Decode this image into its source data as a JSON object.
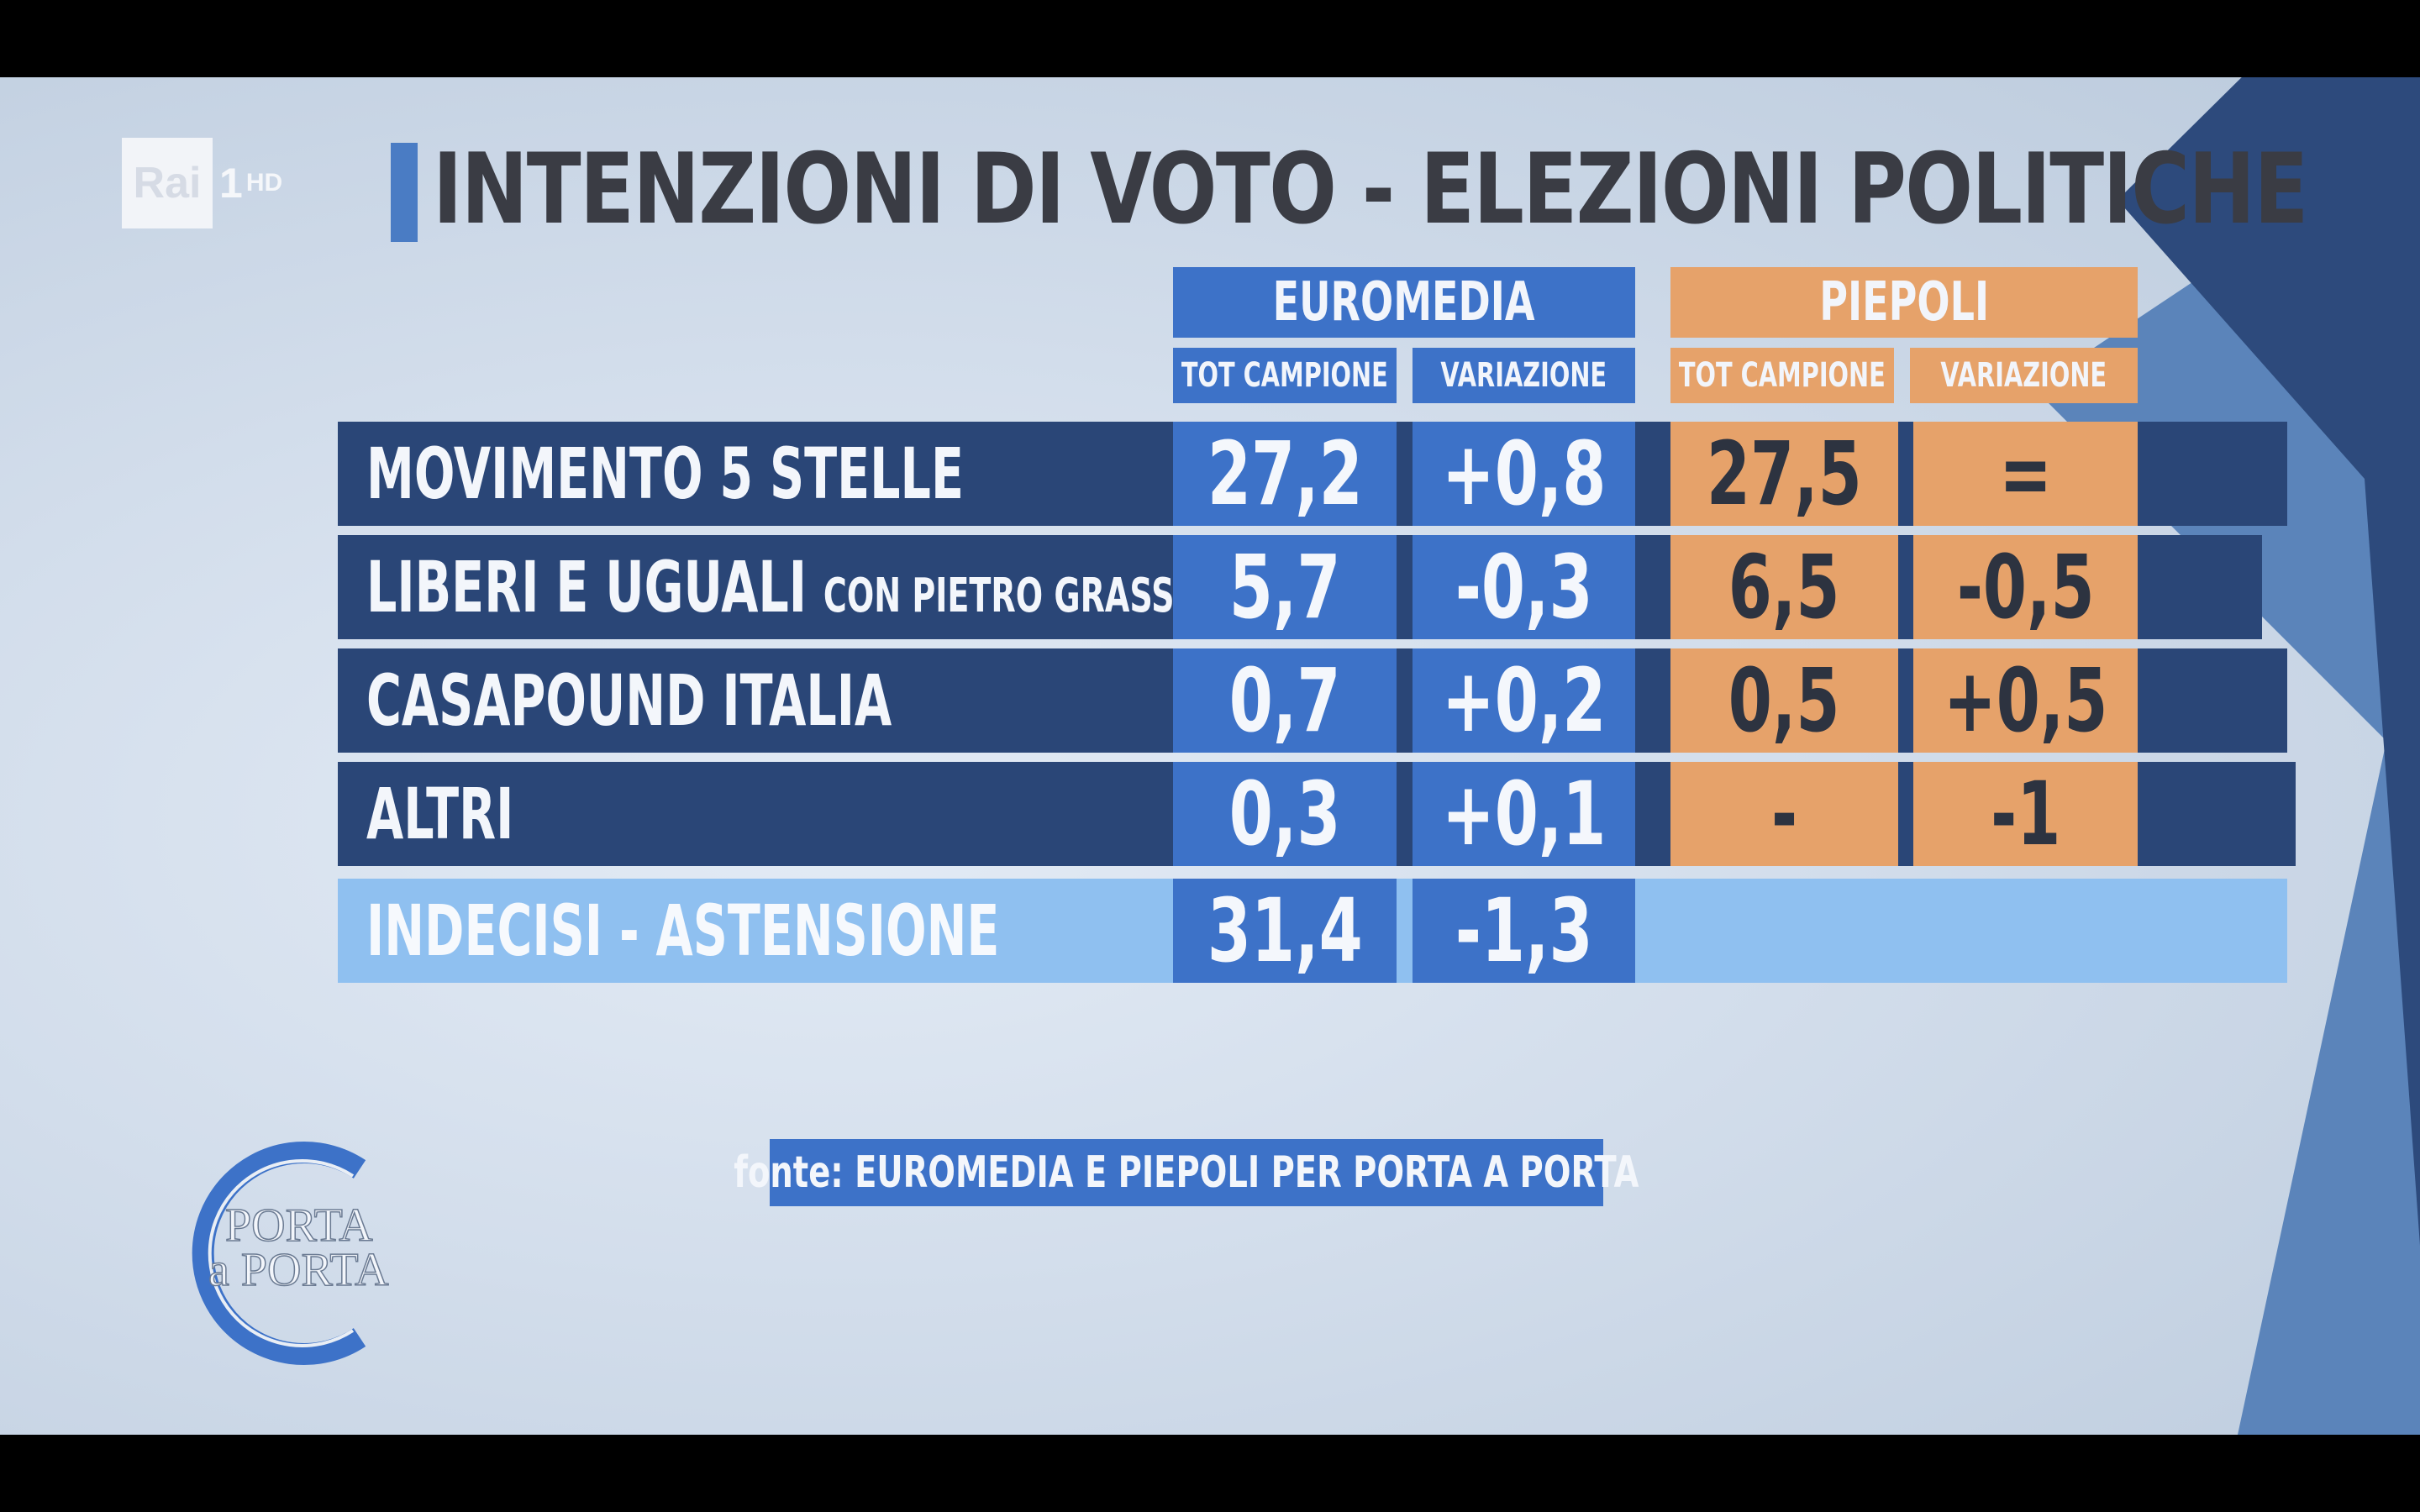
{
  "channel": {
    "brand": "Rai",
    "number": "1",
    "suffix": "HD"
  },
  "title": "INTENZIONI DI VOTO - ELEZIONI POLITICHE",
  "pollsters": [
    {
      "name": "EUROMEDIA",
      "columns": [
        "TOT CAMPIONE",
        "VARIAZIONE"
      ]
    },
    {
      "name": "PIEPOLI",
      "columns": [
        "TOT CAMPIONE",
        "VARIAZIONE"
      ]
    }
  ],
  "rows": [
    {
      "label": "MOVIMENTO 5 STELLE",
      "sublabel": "",
      "euro_tot": "27,2",
      "euro_var": "+0,8",
      "piep_tot": "27,5",
      "piep_var": "="
    },
    {
      "label": "LIBERI E UGUALI",
      "sublabel": "CON PIETRO GRASSO",
      "euro_tot": "5,7",
      "euro_var": "-0,3",
      "piep_tot": "6,5",
      "piep_var": "-0,5"
    },
    {
      "label": "CASAPOUND ITALIA",
      "sublabel": "",
      "euro_tot": "0,7",
      "euro_var": "+0,2",
      "piep_tot": "0,5",
      "piep_var": "+0,5"
    },
    {
      "label": "ALTRI",
      "sublabel": "",
      "euro_tot": "0,3",
      "euro_var": "+0,1",
      "piep_tot": "-",
      "piep_var": "-1"
    },
    {
      "label": "INDECISI - ASTENSIONE",
      "sublabel": "",
      "euro_tot": "31,4",
      "euro_var": "-1,3"
    }
  ],
  "source": "fonte: EUROMEDIA E PIEPOLI PER PORTA A PORTA",
  "show_logo": {
    "line1": "PORTA",
    "line2": "a PORTA"
  },
  "colors": {
    "euromedia": "#3d72c8",
    "piepoli": "#e6a26a",
    "row_dark": "#2a4677",
    "row_light": "#8fc0f0"
  }
}
